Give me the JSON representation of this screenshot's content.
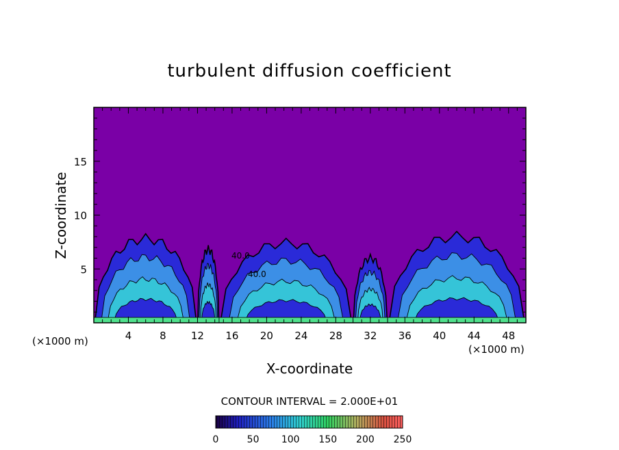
{
  "chart_data": {
    "type": "heatmap",
    "title": "turbulent diffusion coefficient",
    "xlabel": "X-coordinate",
    "ylabel": "Z-coordinate",
    "x_units_left": "(×1000 m)",
    "x_units_right": "(×1000 m)",
    "xlim": [
      0,
      50
    ],
    "ylim": [
      0,
      20
    ],
    "x_ticks": [
      4,
      8,
      12,
      16,
      20,
      24,
      28,
      32,
      36,
      40,
      44,
      48
    ],
    "y_ticks": [
      5,
      10,
      15
    ],
    "contour_interval_text": "CONTOUR INTERVAL = 2.000E+01",
    "contour_interval": 20,
    "inline_contour_labels": [
      "40.0",
      "40.0"
    ],
    "colorbar": {
      "min": 0,
      "max": 250,
      "ticks": [
        0,
        50,
        100,
        150,
        200,
        250
      ]
    },
    "background_value": 0,
    "cells": [
      {
        "x": [
          0,
          12
        ],
        "top": 7.8,
        "core": 70
      },
      {
        "x": [
          12,
          14.5
        ],
        "top": 6.8,
        "core": 60
      },
      {
        "x": [
          14.5,
          30
        ],
        "top": 7.4,
        "core": 60
      },
      {
        "x": [
          30,
          34
        ],
        "top": 6.0,
        "core": 40
      },
      {
        "x": [
          34,
          50
        ],
        "top": 8.0,
        "core": 60
      }
    ],
    "colors": {
      "background": "#7a00a6",
      "low": "#2a2ad8",
      "mid": "#3c8fe6",
      "high": "#35c4d8",
      "peak": "#4fe08c"
    }
  }
}
